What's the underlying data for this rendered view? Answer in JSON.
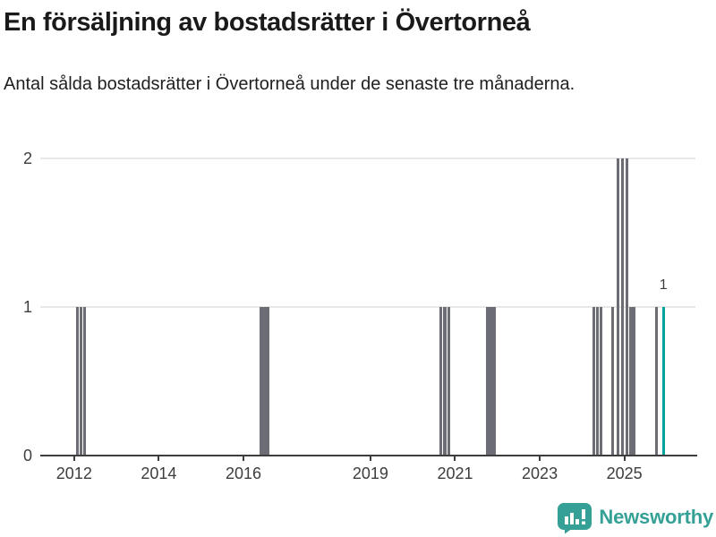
{
  "header": {
    "title": "En försäljning av bostadsrätter i Övertorneå",
    "subtitle": "Antal sålda bostadsrätter i Övertorneå under de senaste tre månaderna."
  },
  "footer": {
    "brand": "Newsworthy",
    "brand_color": "#35a096",
    "logo_icon": "bar-chart-speech-bubble-icon"
  },
  "chart_data": {
    "type": "bar",
    "title": "En försäljning av bostadsrätter i Övertorneå",
    "subtitle": "Antal sålda bostadsrätter i Övertorneå under de senaste tre månaderna.",
    "xlabel": "",
    "ylabel": "",
    "x_unit": "year (one bar per month)",
    "y_unit": "antal sålda bostadsrätter",
    "ylim": [
      0,
      2
    ],
    "yticks": [
      0,
      1,
      2
    ],
    "xticks": [
      2012,
      2014,
      2016,
      2019,
      2021,
      2023,
      2025
    ],
    "x_domain": [
      2011.2,
      2026.72
    ],
    "grid": "horizontal",
    "legend": "none",
    "bar_color": "#6c6c74",
    "highlight_color": "#00a29d",
    "grid_color": "#e7e7e7",
    "axis_color": "#3d3d3d",
    "annotation": {
      "text": "1",
      "x": 2025.922,
      "value": 1
    },
    "bars": [
      {
        "x": 2012.074,
        "value": 1
      },
      {
        "x": 2012.163,
        "value": 1
      },
      {
        "x": 2012.252,
        "value": 1
      },
      {
        "x": 2016.419,
        "value": 1
      },
      {
        "x": 2016.503,
        "value": 1
      },
      {
        "x": 2016.588,
        "value": 1
      },
      {
        "x": 2020.668,
        "value": 1
      },
      {
        "x": 2020.757,
        "value": 1
      },
      {
        "x": 2020.846,
        "value": 1
      },
      {
        "x": 2021.757,
        "value": 1
      },
      {
        "x": 2021.842,
        "value": 1
      },
      {
        "x": 2021.926,
        "value": 1
      },
      {
        "x": 2024.273,
        "value": 1
      },
      {
        "x": 2024.361,
        "value": 1
      },
      {
        "x": 2024.45,
        "value": 1
      },
      {
        "x": 2024.717,
        "value": 1
      },
      {
        "x": 2024.854,
        "value": 2
      },
      {
        "x": 2024.953,
        "value": 2
      },
      {
        "x": 2025.053,
        "value": 2
      },
      {
        "x": 2025.139,
        "value": 1
      },
      {
        "x": 2025.224,
        "value": 1
      },
      {
        "x": 2025.763,
        "value": 1
      },
      {
        "x": 2025.922,
        "value": 1,
        "highlight": true
      }
    ]
  }
}
